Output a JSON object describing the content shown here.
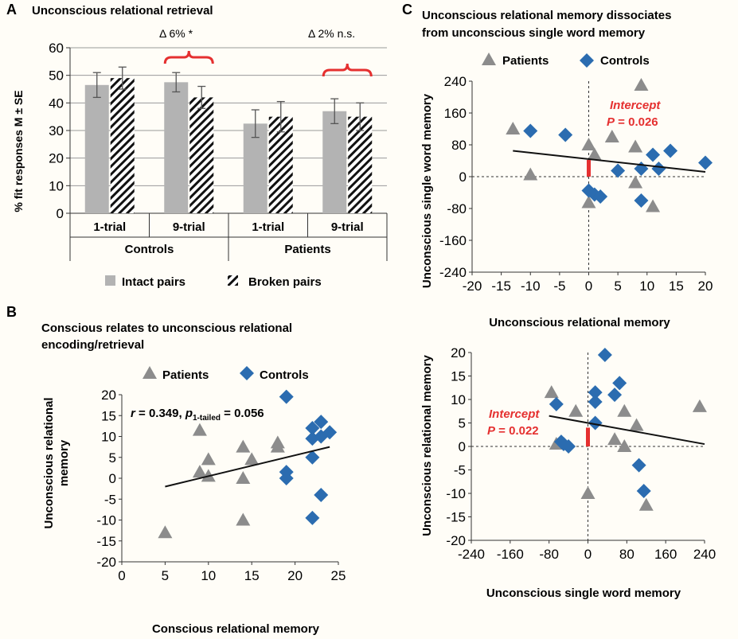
{
  "panels": {
    "A": {
      "letter": "A",
      "title": "Unconscious relational retrieval",
      "delta1": "Δ 6% *",
      "delta2": "Δ 2% n.s.",
      "ylabel": "% fit responses M ± SE",
      "groups": [
        "Controls",
        "Patients"
      ],
      "legend": [
        "Intact pairs",
        "Broken pairs"
      ]
    },
    "B": {
      "letter": "B",
      "title_line1": "Conscious relates to unconscious relational",
      "title_line2": "encoding/retrieval",
      "xlabel": "Conscious relational memory",
      "ylabel_line1": "Unconscious relational",
      "ylabel_line2": "memory",
      "stat_r": "r",
      "stat_eq1": " = 0.349, ",
      "stat_p": "p",
      "stat_sub": "1-tailed",
      "stat_eq2": " = 0.056",
      "legend": [
        "Patients",
        "Controls"
      ]
    },
    "C": {
      "letter": "C",
      "title_line1": "Unconscious relational memory dissociates",
      "title_line2": "from unconscious single word memory",
      "legend": [
        "Patients",
        "Controls"
      ],
      "top": {
        "xlabel": "Unconscious relational memory",
        "ylabel": "Unconscious single word memory",
        "intercept_label": "Intercept",
        "p_label": "P",
        "p_value": " = 0.026"
      },
      "bottom": {
        "xlabel": "Unconscious single word memory",
        "ylabel": "Unconscious relational memory",
        "intercept_label": "Intercept",
        "p_label": "P",
        "p_value": " = 0.022"
      }
    }
  },
  "colors": {
    "patients": "#8c8c8c",
    "controls": "#2b6cb0",
    "intact": "#b3b3b3",
    "accent": "#e53030"
  },
  "chart_data": [
    {
      "id": "A",
      "type": "bar",
      "title": "Unconscious relational retrieval",
      "ylabel": "% fit responses M ± SE",
      "ylim": [
        0,
        60
      ],
      "yticks": [
        0,
        10,
        20,
        30,
        40,
        50,
        60
      ],
      "categories": [
        "1-trial",
        "9-trial",
        "1-trial",
        "9-trial"
      ],
      "groups": [
        "Controls",
        "Patients"
      ],
      "series": [
        {
          "name": "Intact pairs",
          "values": [
            46.5,
            47.5,
            32.5,
            37
          ],
          "errors": [
            4.5,
            3.5,
            5,
            4.5
          ]
        },
        {
          "name": "Broken pairs",
          "values": [
            49,
            42,
            35,
            35
          ],
          "errors": [
            4,
            4,
            5.5,
            5
          ]
        }
      ],
      "annotations": [
        "Δ 6% *",
        "Δ 2% n.s."
      ]
    },
    {
      "id": "B",
      "type": "scatter",
      "title": "Conscious relates to unconscious relational encoding/retrieval",
      "xlabel": "Conscious relational memory",
      "ylabel": "Unconscious relational memory",
      "xlim": [
        0,
        25
      ],
      "ylim": [
        -20,
        20
      ],
      "xticks": [
        0,
        5,
        10,
        15,
        20,
        25
      ],
      "yticks": [
        -20,
        -15,
        -10,
        -5,
        0,
        5,
        10,
        15,
        20
      ],
      "series": [
        {
          "name": "Patients",
          "points": [
            [
              5,
              -13
            ],
            [
              9,
              11.5
            ],
            [
              9,
              1.5
            ],
            [
              10,
              4.5
            ],
            [
              10,
              0.5
            ],
            [
              14,
              7.5
            ],
            [
              14,
              0
            ],
            [
              14,
              -10
            ],
            [
              15,
              4.5
            ],
            [
              18,
              7.5
            ],
            [
              18,
              8.5
            ]
          ]
        },
        {
          "name": "Controls",
          "points": [
            [
              19,
              19.5
            ],
            [
              19,
              1.5
            ],
            [
              19,
              0
            ],
            [
              22,
              12
            ],
            [
              22,
              9.5
            ],
            [
              22,
              5
            ],
            [
              22,
              -9.5
            ],
            [
              23,
              13.5
            ],
            [
              23,
              10
            ],
            [
              23,
              -4
            ],
            [
              24,
              11
            ]
          ]
        }
      ],
      "fit_line": [
        [
          5,
          -2
        ],
        [
          24,
          7.5
        ]
      ],
      "stat": "r = 0.349, p1-tailed = 0.056"
    },
    {
      "id": "C-top",
      "type": "scatter",
      "title": "Unconscious relational memory dissociates from unconscious single word memory",
      "xlabel": "Unconscious relational memory",
      "ylabel": "Unconscious single word memory",
      "xlim": [
        -20,
        20
      ],
      "ylim": [
        -240,
        240
      ],
      "xticks": [
        -20,
        -15,
        -10,
        -5,
        0,
        5,
        10,
        15,
        20
      ],
      "yticks": [
        -240,
        -160,
        -80,
        0,
        80,
        160,
        240
      ],
      "series": [
        {
          "name": "Patients",
          "points": [
            [
              -13,
              120
            ],
            [
              -10,
              5
            ],
            [
              0,
              80
            ],
            [
              0,
              -65
            ],
            [
              1,
              55
            ],
            [
              4,
              100
            ],
            [
              8,
              75
            ],
            [
              8,
              -15
            ],
            [
              9,
              230
            ],
            [
              11,
              -75
            ]
          ]
        },
        {
          "name": "Controls",
          "points": [
            [
              -10,
              115
            ],
            [
              -4,
              105
            ],
            [
              0,
              -35
            ],
            [
              1,
              -45
            ],
            [
              2,
              -50
            ],
            [
              5,
              15
            ],
            [
              9,
              20
            ],
            [
              9,
              -60
            ],
            [
              11,
              55
            ],
            [
              12,
              20
            ],
            [
              14,
              65
            ],
            [
              20,
              35
            ]
          ]
        }
      ],
      "fit_line": [
        [
          -13,
          65
        ],
        [
          20,
          12
        ]
      ],
      "annotation": "Intercept P = 0.026"
    },
    {
      "id": "C-bottom",
      "type": "scatter",
      "xlabel": "Unconscious single word memory",
      "ylabel": "Unconscious relational memory",
      "xlim": [
        -240,
        240
      ],
      "ylim": [
        -20,
        20
      ],
      "xticks": [
        -240,
        -160,
        -80,
        0,
        80,
        160,
        240
      ],
      "yticks": [
        -20,
        -15,
        -10,
        -5,
        0,
        5,
        10,
        15,
        20
      ],
      "series": [
        {
          "name": "Patients",
          "points": [
            [
              -75,
              11.5
            ],
            [
              -65,
              0.5
            ],
            [
              -25,
              7.5
            ],
            [
              0,
              -10
            ],
            [
              55,
              1.5
            ],
            [
              75,
              7.5
            ],
            [
              75,
              0
            ],
            [
              100,
              4.5
            ],
            [
              120,
              -12.5
            ],
            [
              230,
              8.5
            ]
          ]
        },
        {
          "name": "Controls",
          "points": [
            [
              -65,
              9
            ],
            [
              -55,
              1
            ],
            [
              -50,
              0.5
            ],
            [
              -40,
              0
            ],
            [
              15,
              11.5
            ],
            [
              15,
              9.5
            ],
            [
              15,
              5
            ],
            [
              35,
              19.5
            ],
            [
              55,
              11
            ],
            [
              65,
              13.5
            ],
            [
              105,
              -4
            ],
            [
              115,
              -9.5
            ]
          ]
        }
      ],
      "fit_line": [
        [
          -80,
          6.5
        ],
        [
          240,
          0.5
        ]
      ],
      "annotation": "Intercept P = 0.022"
    }
  ]
}
